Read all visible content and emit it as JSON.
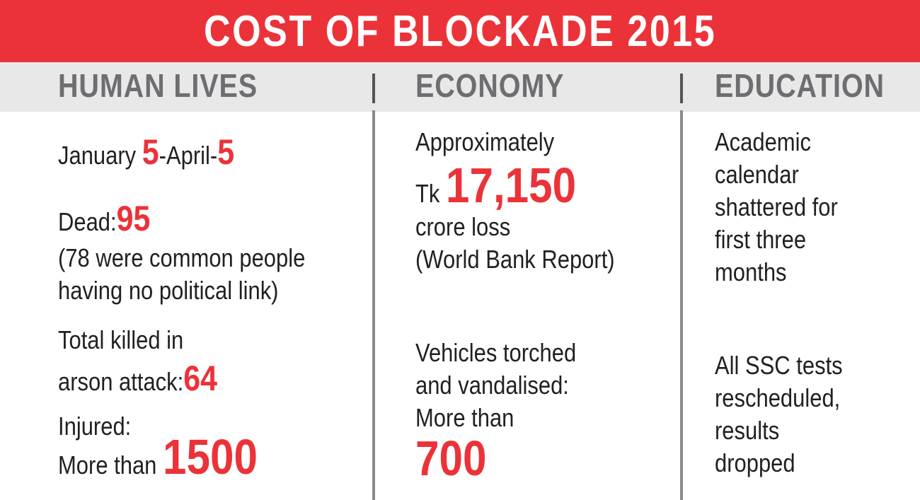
{
  "title": "COST OF BLOCKADE 2015",
  "accent_color": "#ec3239",
  "human_lives": {
    "heading": "HUMAN LIVES",
    "period_prefix": "January ",
    "period_num1": "5",
    "period_mid": "-April-",
    "period_num2": "5",
    "dead_label": "Dead:",
    "dead_value": "95",
    "dead_note_line1": "(78 were common people",
    "dead_note_line2": "having no political link)",
    "arson_line1": "Total killed in",
    "arson_line2": "arson attack:",
    "arson_value": "64",
    "injured_line1": "Injured:",
    "injured_line2": "More than ",
    "injured_value": "1500"
  },
  "economy": {
    "heading": "ECONOMY",
    "loss_line1": "Approximately",
    "loss_prefix": "Tk ",
    "loss_value": "17,150",
    "loss_line3": "crore loss",
    "loss_source": "(World Bank Report)",
    "vehicles_line1": "Vehicles torched",
    "vehicles_line2": "and vandalised:",
    "vehicles_line3": "More than",
    "vehicles_value": "700"
  },
  "education": {
    "heading": "EDUCATION",
    "calendar_line1": "Academic",
    "calendar_line2": "calendar",
    "calendar_line3": "shattered for",
    "calendar_line4": "first three",
    "calendar_line5": "months",
    "ssc_line1": "All SSC tests",
    "ssc_line2": "rescheduled,",
    "ssc_line3": "results",
    "ssc_line4": "dropped"
  }
}
